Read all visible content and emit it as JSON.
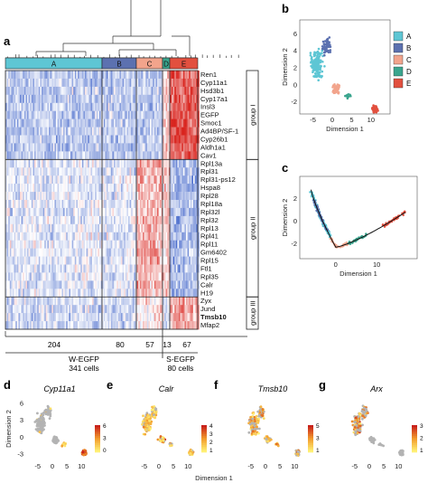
{
  "panels": {
    "a": "a",
    "b": "b",
    "c": "c",
    "d": "d",
    "e": "e",
    "f": "f",
    "g": "g"
  },
  "heatmap": {
    "clusters": [
      {
        "label": "A",
        "color": "#5ec6d4"
      },
      {
        "label": "B",
        "color": "#5c71b0"
      },
      {
        "label": "C",
        "color": "#f2a48c"
      },
      {
        "label": "D",
        "color": "#3aa58e"
      },
      {
        "label": "E",
        "color": "#e2503f"
      }
    ],
    "cluster_counts": [
      "204",
      "80",
      "57",
      "13",
      "67"
    ],
    "groups": [
      "group I",
      "group II",
      "group III"
    ],
    "genes_group1": [
      "Ren1",
      "Cyp11a1",
      "Hsd3b1",
      "Cyp17a1",
      "Insl3",
      "EGFP",
      "Smoc1",
      "Ad4BP/SF-1",
      "Cyp26b1",
      "Aldh1a1",
      "Cav1"
    ],
    "genes_group2": [
      "Rpl13a",
      "Rpl31",
      "Rpl31-ps12",
      "Hspa8",
      "Rpl28",
      "Rpl18a",
      "Rpl32l",
      "Rpl32",
      "Rpl13",
      "Rpl41",
      "Rpl11",
      "Gm6402",
      "Rpl15",
      "Ftl1",
      "Rpl35",
      "Calr",
      "H19"
    ],
    "genes_group3": [
      "Zyx",
      "Jund",
      "Tmsb10",
      "Mfap2"
    ],
    "highlight_gene": "Tmsb10",
    "w_label": "W-EGFP",
    "w_cells": "341 cells",
    "s_label": "S-EGFP",
    "s_cells": "80 cells"
  },
  "panel_b": {
    "xlabel": "Dimension 1",
    "ylabel": "Dimension 2",
    "xticks": [
      "-5",
      "0",
      "5",
      "10"
    ],
    "yticks": [
      "6",
      "4",
      "2",
      "0",
      "-2"
    ],
    "legend": [
      "A",
      "B",
      "C",
      "D",
      "E"
    ]
  },
  "panel_c": {
    "xlabel": "Dimension 1",
    "ylabel": "Dimension 2",
    "xticks": [
      "0",
      "10"
    ],
    "yticks": [
      "2",
      "0",
      "-2"
    ]
  },
  "feature_plots": [
    {
      "gene": "Cyp11a1",
      "scale": [
        "6",
        "3",
        "0"
      ]
    },
    {
      "gene": "Calr",
      "scale": [
        "4",
        "3",
        "2",
        "1"
      ]
    },
    {
      "gene": "Tmsb10",
      "scale": [
        "5",
        "3",
        "1"
      ]
    },
    {
      "gene": "Arx",
      "scale": [
        "3",
        "2",
        "1"
      ]
    }
  ],
  "feature_common": {
    "xticks": [
      "-5",
      "0",
      "5",
      "10"
    ],
    "yticks": [
      "6",
      "3",
      "0",
      "-3"
    ],
    "ylabel": "Dimension 2",
    "xlabel": "Dimension 1"
  },
  "colors": {
    "heat_blue": "#3f63c9",
    "heat_red": "#d9241e",
    "traj_line": "#111111",
    "grey_point": "#b3b3b3"
  }
}
